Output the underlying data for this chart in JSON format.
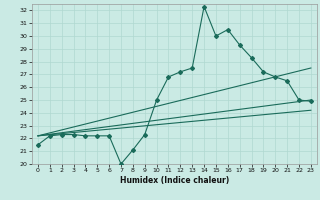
{
  "title": "",
  "xlabel": "Humidex (Indice chaleur)",
  "bg_color": "#caeae4",
  "line_color": "#1a6b5a",
  "grid_color": "#b0d8d0",
  "xlim": [
    -0.5,
    23.5
  ],
  "ylim": [
    20,
    32.5
  ],
  "yticks": [
    20,
    21,
    22,
    23,
    24,
    25,
    26,
    27,
    28,
    29,
    30,
    31,
    32
  ],
  "xticks": [
    0,
    1,
    2,
    3,
    4,
    5,
    6,
    7,
    8,
    9,
    10,
    11,
    12,
    13,
    14,
    15,
    16,
    17,
    18,
    19,
    20,
    21,
    22,
    23
  ],
  "line1_x": [
    0,
    1,
    2,
    3,
    4,
    5,
    6,
    7,
    8,
    9,
    10,
    11,
    12,
    13,
    14,
    15,
    16,
    17,
    18,
    19,
    20,
    21,
    22,
    23
  ],
  "line1_y": [
    21.5,
    22.2,
    22.3,
    22.3,
    22.2,
    22.2,
    22.2,
    20.0,
    21.1,
    22.3,
    25.0,
    26.8,
    27.2,
    27.5,
    32.3,
    30.0,
    30.5,
    29.3,
    28.3,
    27.2,
    26.8,
    26.5,
    25.0,
    24.9
  ],
  "line2_x": [
    0,
    23
  ],
  "line2_y": [
    22.2,
    27.5
  ],
  "line3_x": [
    0,
    23
  ],
  "line3_y": [
    22.2,
    25.0
  ],
  "line4_x": [
    0,
    23
  ],
  "line4_y": [
    22.2,
    24.2
  ]
}
